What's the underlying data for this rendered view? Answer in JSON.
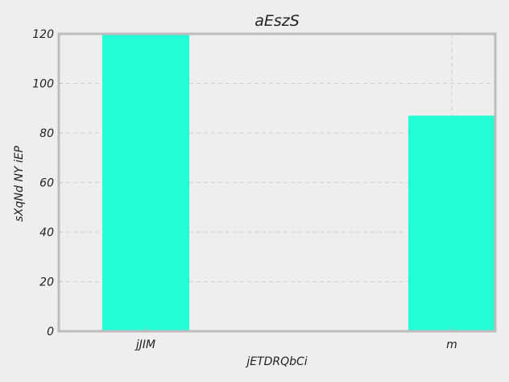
{
  "chart_data": {
    "type": "bar",
    "title": "aEszS",
    "xlabel": "jETDRQbCi",
    "ylabel": "sXqNd NY iEP",
    "categories": [
      "jJIM",
      "m"
    ],
    "values": [
      120,
      87
    ],
    "ylim": [
      0,
      120
    ],
    "yticks": [
      0,
      20,
      40,
      60,
      80,
      100,
      120
    ],
    "grid": true,
    "colors": {
      "bar": "#22ffd6",
      "background": "#eeeeee",
      "frame": "#bcbcbc",
      "grid": "#cfcfcf"
    }
  }
}
